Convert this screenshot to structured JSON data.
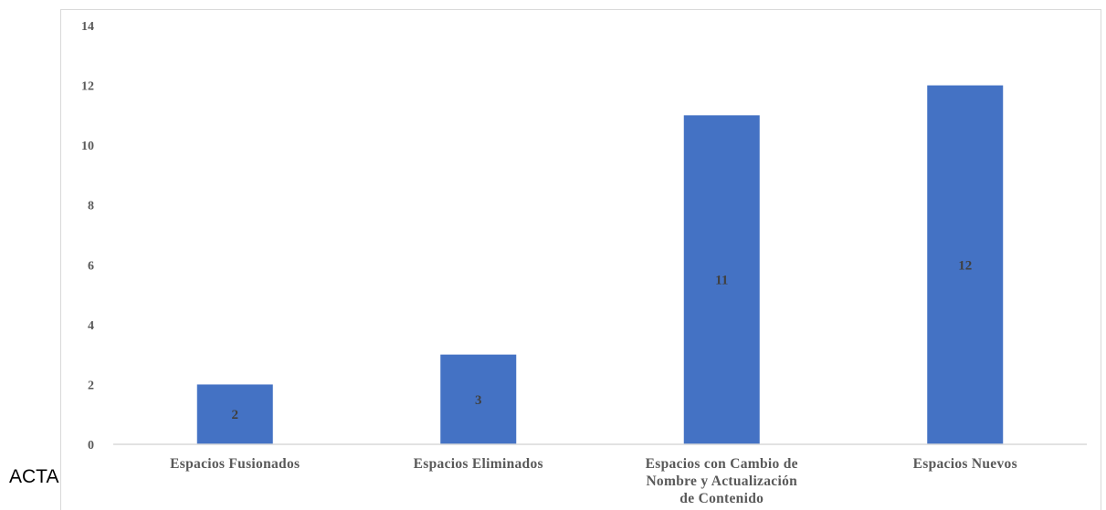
{
  "side_text": "ACTA",
  "colors": {
    "bar": "#4472c4",
    "axis": "#d9d9d9",
    "tick_text": "#595959",
    "data_label_text": "#404040"
  },
  "chart_data": {
    "type": "bar",
    "categories": [
      [
        "Espacios Fusionados"
      ],
      [
        "Espacios Eliminados"
      ],
      [
        "Espacios con Cambio de",
        "Nombre y Actualización",
        "de Contenido"
      ],
      [
        "Espacios Nuevos"
      ]
    ],
    "values": [
      2,
      3,
      11,
      12
    ],
    "data_labels": [
      "2",
      "3",
      "11",
      "12"
    ],
    "yticks": [
      "0",
      "2",
      "4",
      "6",
      "8",
      "10",
      "12",
      "14"
    ],
    "ylim": [
      0,
      14
    ],
    "grid": false,
    "legend": "none"
  }
}
